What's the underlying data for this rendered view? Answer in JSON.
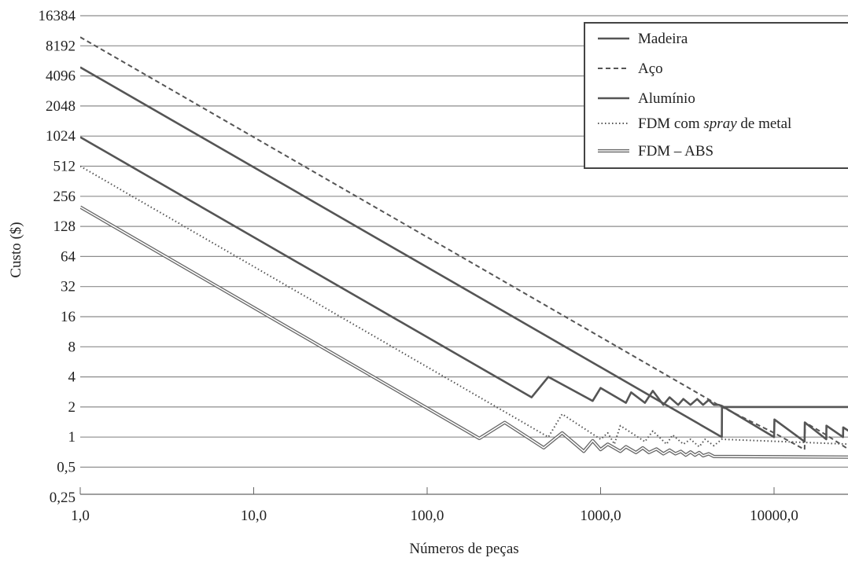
{
  "chart_data": {
    "type": "line",
    "xlabel": "Números de peças",
    "ylabel": "Custo ($)",
    "x_scale": "log10",
    "y_scale": "log2",
    "xlim": [
      1,
      27000
    ],
    "ylim": [
      0.25,
      16384
    ],
    "x_ticks": [
      {
        "value": 1,
        "label": "1,0"
      },
      {
        "value": 10,
        "label": "10,0"
      },
      {
        "value": 100,
        "label": "100,0"
      },
      {
        "value": 1000,
        "label": "1000,0"
      },
      {
        "value": 10000,
        "label": "10000,0"
      }
    ],
    "y_ticks": [
      {
        "value": 0.25,
        "label": "0,25"
      },
      {
        "value": 0.5,
        "label": "0,5"
      },
      {
        "value": 1,
        "label": "1"
      },
      {
        "value": 2,
        "label": "2"
      },
      {
        "value": 4,
        "label": "4"
      },
      {
        "value": 8,
        "label": "8"
      },
      {
        "value": 16,
        "label": "16"
      },
      {
        "value": 32,
        "label": "32"
      },
      {
        "value": 64,
        "label": "64"
      },
      {
        "value": 128,
        "label": "128"
      },
      {
        "value": 256,
        "label": "256"
      },
      {
        "value": 512,
        "label": "512"
      },
      {
        "value": 1024,
        "label": "1024"
      },
      {
        "value": 2048,
        "label": "2048"
      },
      {
        "value": 4096,
        "label": "4096"
      },
      {
        "value": 8192,
        "label": "8192"
      },
      {
        "value": 16384,
        "label": "16384"
      }
    ],
    "grid": {
      "horizontal": true,
      "vertical": false
    },
    "legend": {
      "position": "top-right"
    },
    "series": [
      {
        "name": "Madeira",
        "style": "solid",
        "color": "#555555",
        "points": [
          [
            1,
            5000
          ],
          [
            5000,
            1
          ],
          [
            5010,
            2
          ],
          [
            27000,
            2
          ]
        ]
      },
      {
        "name": "Aço",
        "style": "dashed",
        "color": "#555555",
        "points": [
          [
            1,
            10000
          ],
          [
            5000,
            2
          ],
          [
            10000,
            1.1
          ],
          [
            15000,
            0.75
          ],
          [
            15100,
            1.4
          ],
          [
            20000,
            1.05
          ],
          [
            27000,
            0.75
          ]
        ]
      },
      {
        "name": "Alumínio",
        "style": "solid",
        "color": "#555555",
        "points": [
          [
            1,
            1000
          ],
          [
            400,
            2.5
          ],
          [
            500,
            4
          ],
          [
            900,
            2.3
          ],
          [
            1000,
            3.1
          ],
          [
            1400,
            2.2
          ],
          [
            1500,
            2.8
          ],
          [
            1800,
            2.2
          ],
          [
            2000,
            2.9
          ],
          [
            2300,
            2.1
          ],
          [
            2500,
            2.5
          ],
          [
            2800,
            2.1
          ],
          [
            3000,
            2.4
          ],
          [
            3300,
            2.1
          ],
          [
            3600,
            2.4
          ],
          [
            3900,
            2.1
          ],
          [
            4200,
            2.35
          ],
          [
            4500,
            2.1
          ],
          [
            4800,
            2.1
          ],
          [
            5000,
            2.05
          ],
          [
            10000,
            1.0
          ],
          [
            10050,
            1.5
          ],
          [
            15000,
            0.9
          ],
          [
            15050,
            1.4
          ],
          [
            20000,
            0.95
          ],
          [
            20050,
            1.3
          ],
          [
            25000,
            1.0
          ],
          [
            25050,
            1.25
          ],
          [
            27000,
            1.15
          ]
        ]
      },
      {
        "name": "FDM com spray de metal",
        "style": "dotted",
        "color": "#555555",
        "points": [
          [
            1,
            512
          ],
          [
            500,
            1.0
          ],
          [
            600,
            1.7
          ],
          [
            1000,
            0.95
          ],
          [
            1100,
            1.1
          ],
          [
            1200,
            0.85
          ],
          [
            1300,
            1.3
          ],
          [
            1800,
            0.9
          ],
          [
            2000,
            1.15
          ],
          [
            2400,
            0.85
          ],
          [
            2600,
            1.05
          ],
          [
            3000,
            0.85
          ],
          [
            3300,
            0.95
          ],
          [
            3700,
            0.8
          ],
          [
            4000,
            0.95
          ],
          [
            4500,
            0.82
          ],
          [
            5000,
            0.95
          ],
          [
            27000,
            0.85
          ]
        ]
      },
      {
        "name": "FDM – ABS",
        "style": "double",
        "color": "#555555",
        "points": [
          [
            1,
            200
          ],
          [
            200,
            0.97
          ],
          [
            280,
            1.4
          ],
          [
            470,
            0.78
          ],
          [
            600,
            1.1
          ],
          [
            800,
            0.72
          ],
          [
            900,
            0.92
          ],
          [
            1000,
            0.75
          ],
          [
            1100,
            0.85
          ],
          [
            1300,
            0.72
          ],
          [
            1400,
            0.8
          ],
          [
            1600,
            0.7
          ],
          [
            1750,
            0.78
          ],
          [
            1900,
            0.7
          ],
          [
            2100,
            0.76
          ],
          [
            2300,
            0.68
          ],
          [
            2500,
            0.74
          ],
          [
            2700,
            0.68
          ],
          [
            2900,
            0.72
          ],
          [
            3100,
            0.66
          ],
          [
            3300,
            0.71
          ],
          [
            3500,
            0.66
          ],
          [
            3700,
            0.7
          ],
          [
            3900,
            0.65
          ],
          [
            4200,
            0.68
          ],
          [
            4500,
            0.64
          ],
          [
            27000,
            0.63
          ]
        ]
      }
    ]
  },
  "legend": {
    "madeira": "Madeira",
    "aco": "Aço",
    "aluminio": "Alumínio",
    "fdm_spray_pre": "FDM com ",
    "fdm_spray_italic": "spray",
    "fdm_spray_post": " de metal",
    "fdm_abs": "FDM – ABS"
  }
}
